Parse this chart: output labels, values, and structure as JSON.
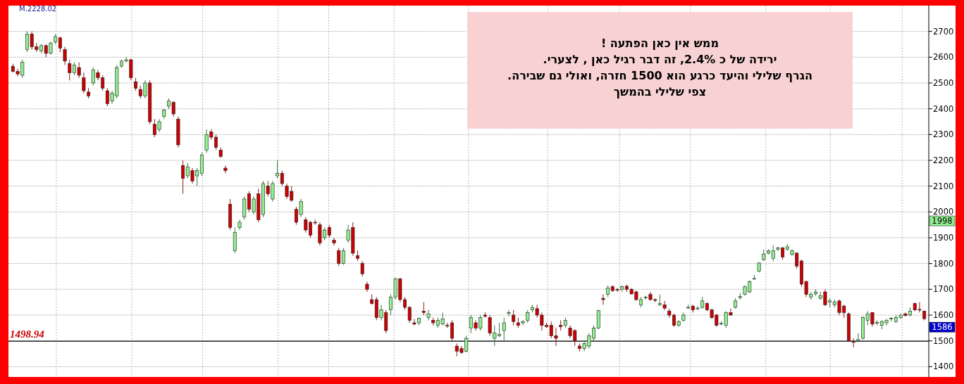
{
  "chart_data": {
    "type": "candlestick",
    "categories": [
      null,
      null,
      null,
      null,
      null,
      null,
      null,
      null,
      null,
      null,
      null,
      null,
      null,
      null,
      null,
      null,
      null,
      null,
      null,
      null,
      null,
      null,
      null,
      null,
      null,
      null,
      null,
      null,
      null,
      null,
      null,
      null,
      null,
      null,
      null,
      null,
      null,
      null,
      null,
      null,
      null,
      null,
      null,
      null,
      null,
      null,
      null,
      null,
      null,
      null,
      null,
      null,
      null,
      null,
      null,
      null,
      null,
      null,
      null,
      null,
      null,
      null,
      null,
      null,
      null,
      null,
      null,
      null,
      null,
      null,
      null,
      null,
      null,
      null,
      null,
      null,
      null,
      null,
      null,
      null,
      null,
      null,
      null,
      null,
      null,
      null,
      null,
      null,
      null,
      null,
      null,
      null,
      null,
      null,
      null,
      null,
      null,
      null,
      null,
      null,
      null,
      null,
      null,
      null,
      null,
      null,
      null,
      null,
      null,
      null,
      null,
      null,
      null,
      null,
      null,
      null,
      null,
      null,
      null,
      null,
      null,
      null,
      null,
      null,
      null,
      null,
      null,
      null,
      null,
      null,
      null,
      null,
      null,
      null,
      null,
      null,
      null,
      null,
      null,
      null,
      null,
      null,
      null,
      null,
      null,
      null,
      null,
      null,
      null,
      null,
      null,
      null,
      null,
      null,
      null,
      null,
      null,
      null,
      null,
      null,
      null,
      null,
      null,
      null,
      null,
      null,
      null,
      null,
      null,
      null,
      null,
      null,
      null,
      null,
      null,
      null,
      null,
      null,
      null,
      null,
      null,
      null,
      null,
      null,
      null,
      null,
      null,
      null,
      null,
      null,
      null,
      null,
      null,
      null
    ],
    "ohlc": [
      [
        2565,
        2575,
        2540,
        2545
      ],
      [
        2545,
        2555,
        2525,
        2535
      ],
      [
        2530,
        2590,
        2520,
        2580
      ],
      [
        2630,
        2700,
        2620,
        2690
      ],
      [
        2690,
        2700,
        2630,
        2640
      ],
      [
        2640,
        2655,
        2620,
        2630
      ],
      [
        2625,
        2650,
        2615,
        2645
      ],
      [
        2645,
        2650,
        2600,
        2615
      ],
      [
        2615,
        2660,
        2610,
        2655
      ],
      [
        2660,
        2690,
        2650,
        2680
      ],
      [
        2675,
        2680,
        2620,
        2635
      ],
      [
        2630,
        2640,
        2570,
        2585
      ],
      [
        2575,
        2590,
        2510,
        2540
      ],
      [
        2540,
        2580,
        2530,
        2570
      ],
      [
        2560,
        2580,
        2520,
        2530
      ],
      [
        2520,
        2540,
        2460,
        2470
      ],
      [
        2465,
        2480,
        2440,
        2450
      ],
      [
        2500,
        2560,
        2490,
        2550
      ],
      [
        2540,
        2550,
        2510,
        2520
      ],
      [
        2520,
        2530,
        2470,
        2480
      ],
      [
        2470,
        2480,
        2410,
        2420
      ],
      [
        2430,
        2470,
        2420,
        2460
      ],
      [
        2450,
        2570,
        2440,
        2560
      ],
      [
        2565,
        2590,
        2560,
        2585
      ],
      [
        2585,
        2600,
        2580,
        2590
      ],
      [
        2590,
        2595,
        2510,
        2520
      ],
      [
        2505,
        2520,
        2470,
        2480
      ],
      [
        2475,
        2490,
        2440,
        2450
      ],
      [
        2450,
        2510,
        2440,
        2500
      ],
      [
        2500,
        2510,
        2340,
        2350
      ],
      [
        2340,
        2360,
        2290,
        2300
      ],
      [
        2320,
        2360,
        2310,
        2350
      ],
      [
        2370,
        2400,
        2360,
        2395
      ],
      [
        2410,
        2440,
        2400,
        2430
      ],
      [
        2425,
        2430,
        2370,
        2380
      ],
      [
        2360,
        2370,
        2250,
        2260
      ],
      [
        2180,
        2200,
        2070,
        2130
      ],
      [
        2140,
        2190,
        2130,
        2175
      ],
      [
        2160,
        2170,
        2110,
        2120
      ],
      [
        2140,
        2170,
        2100,
        2160
      ],
      [
        2150,
        2230,
        2140,
        2220
      ],
      [
        2240,
        2320,
        2230,
        2300
      ],
      [
        2310,
        2320,
        2280,
        2290
      ],
      [
        2290,
        2300,
        2240,
        2250
      ],
      [
        2240,
        2250,
        2210,
        2215
      ],
      [
        2170,
        2180,
        2150,
        2160
      ],
      [
        2030,
        2050,
        1930,
        1940
      ],
      [
        1850,
        1940,
        1840,
        1920
      ],
      [
        1940,
        1970,
        1930,
        1960
      ],
      [
        1980,
        2060,
        1970,
        2050
      ],
      [
        2070,
        2080,
        2000,
        2010
      ],
      [
        2000,
        2060,
        1990,
        2050
      ],
      [
        2070,
        2090,
        1960,
        1970
      ],
      [
        1990,
        2120,
        1980,
        2110
      ],
      [
        2100,
        2120,
        2060,
        2070
      ],
      [
        2050,
        2120,
        2040,
        2110
      ],
      [
        2140,
        2200,
        2130,
        2150
      ],
      [
        2150,
        2160,
        2100,
        2110
      ],
      [
        2100,
        2110,
        2050,
        2060
      ],
      [
        2080,
        2100,
        2040,
        2045
      ],
      [
        2010,
        2020,
        1950,
        1960
      ],
      [
        1990,
        2050,
        1980,
        2040
      ],
      [
        1970,
        1980,
        1920,
        1930
      ],
      [
        1960,
        1965,
        1900,
        1910
      ],
      [
        1960,
        1970,
        1950,
        1958
      ],
      [
        1950,
        1960,
        1870,
        1880
      ],
      [
        1900,
        1940,
        1890,
        1930
      ],
      [
        1940,
        1950,
        1900,
        1910
      ],
      [
        1890,
        1900,
        1870,
        1880
      ],
      [
        1850,
        1860,
        1790,
        1800
      ],
      [
        1800,
        1860,
        1795,
        1850
      ],
      [
        1890,
        1950,
        1880,
        1930
      ],
      [
        1940,
        1960,
        1830,
        1840
      ],
      [
        1830,
        1850,
        1810,
        1820
      ],
      [
        1800,
        1810,
        1750,
        1760
      ],
      [
        1720,
        1730,
        1690,
        1700
      ],
      [
        1660,
        1680,
        1640,
        1645
      ],
      [
        1660,
        1670,
        1580,
        1590
      ],
      [
        1590,
        1640,
        1580,
        1620
      ],
      [
        1610,
        1620,
        1530,
        1540
      ],
      [
        1620,
        1680,
        1600,
        1670
      ],
      [
        1670,
        1745,
        1660,
        1740
      ],
      [
        1740,
        1745,
        1650,
        1660
      ],
      [
        1660,
        1670,
        1620,
        1630
      ],
      [
        1630,
        1635,
        1570,
        1580
      ],
      [
        1570,
        1585,
        1560,
        1565
      ],
      [
        1570,
        1590,
        1560,
        1588
      ],
      [
        1615,
        1650,
        1600,
        1610
      ],
      [
        1590,
        1620,
        1580,
        1605
      ],
      [
        1580,
        1590,
        1560,
        1570
      ],
      [
        1560,
        1590,
        1550,
        1580
      ],
      [
        1565,
        1610,
        1560,
        1585
      ],
      [
        1560,
        1570,
        1550,
        1558
      ],
      [
        1570,
        1580,
        1500,
        1510
      ],
      [
        1480,
        1490,
        1440,
        1460
      ],
      [
        1470,
        1480,
        1450,
        1455
      ],
      [
        1460,
        1520,
        1455,
        1510
      ],
      [
        1550,
        1600,
        1530,
        1590
      ],
      [
        1570,
        1580,
        1540,
        1550
      ],
      [
        1550,
        1600,
        1540,
        1590
      ],
      [
        1600,
        1610,
        1590,
        1595
      ],
      [
        1590,
        1600,
        1520,
        1530
      ],
      [
        1510,
        1560,
        1480,
        1530
      ],
      [
        1520,
        1570,
        1515,
        1525
      ],
      [
        1540,
        1590,
        1500,
        1570
      ],
      [
        1610,
        1620,
        1595,
        1610
      ],
      [
        1600,
        1620,
        1560,
        1575
      ],
      [
        1570,
        1590,
        1550,
        1560
      ],
      [
        1570,
        1580,
        1560,
        1575
      ],
      [
        1580,
        1620,
        1570,
        1610
      ],
      [
        1620,
        1640,
        1610,
        1630
      ],
      [
        1625,
        1640,
        1590,
        1600
      ],
      [
        1600,
        1610,
        1540,
        1560
      ],
      [
        1560,
        1570,
        1550,
        1555
      ],
      [
        1560,
        1575,
        1510,
        1520
      ],
      [
        1520,
        1550,
        1480,
        1510
      ],
      [
        1560,
        1580,
        1540,
        1555
      ],
      [
        1560,
        1590,
        1550,
        1580
      ],
      [
        1550,
        1560,
        1510,
        1520
      ],
      [
        1540,
        1545,
        1480,
        1500
      ],
      [
        1480,
        1490,
        1460,
        1470
      ],
      [
        1470,
        1500,
        1460,
        1490
      ],
      [
        1480,
        1530,
        1470,
        1520
      ],
      [
        1510,
        1560,
        1500,
        1550
      ],
      [
        1550,
        1620,
        1545,
        1618
      ],
      [
        1665,
        1680,
        1640,
        1660
      ],
      [
        1680,
        1715,
        1670,
        1705
      ],
      [
        1710,
        1715,
        1690,
        1695
      ],
      [
        1700,
        1705,
        1690,
        1697
      ],
      [
        1700,
        1715,
        1690,
        1710
      ],
      [
        1712,
        1718,
        1690,
        1700
      ],
      [
        1700,
        1705,
        1680,
        1682
      ],
      [
        1690,
        1695,
        1655,
        1660
      ],
      [
        1640,
        1670,
        1630,
        1660
      ],
      [
        1668,
        1675,
        1660,
        1670
      ],
      [
        1680,
        1690,
        1655,
        1660
      ],
      [
        1660,
        1665,
        1650,
        1657
      ],
      [
        1640,
        1680,
        1635,
        1645
      ],
      [
        1640,
        1655,
        1620,
        1627
      ],
      [
        1615,
        1625,
        1590,
        1600
      ],
      [
        1600,
        1605,
        1555,
        1560
      ],
      [
        1560,
        1580,
        1555,
        1575
      ],
      [
        1580,
        1610,
        1575,
        1600
      ],
      [
        1628,
        1640,
        1625,
        1630
      ],
      [
        1635,
        1640,
        1610,
        1620
      ],
      [
        1625,
        1635,
        1620,
        1627
      ],
      [
        1630,
        1670,
        1625,
        1655
      ],
      [
        1645,
        1650,
        1615,
        1620
      ],
      [
        1620,
        1625,
        1585,
        1590
      ],
      [
        1600,
        1605,
        1555,
        1560
      ],
      [
        1565,
        1575,
        1560,
        1568
      ],
      [
        1560,
        1615,
        1550,
        1610
      ],
      [
        1610,
        1625,
        1598,
        1600
      ],
      [
        1630,
        1665,
        1625,
        1655
      ],
      [
        1668,
        1685,
        1660,
        1672
      ],
      [
        1680,
        1715,
        1675,
        1710
      ],
      [
        1690,
        1735,
        1685,
        1730
      ],
      [
        1740,
        1755,
        1738,
        1742
      ],
      [
        1770,
        1805,
        1765,
        1802
      ],
      [
        1815,
        1855,
        1810,
        1837
      ],
      [
        1840,
        1855,
        1835,
        1850
      ],
      [
        1820,
        1870,
        1810,
        1850
      ],
      [
        1855,
        1865,
        1848,
        1860
      ],
      [
        1860,
        1865,
        1815,
        1825
      ],
      [
        1855,
        1875,
        1850,
        1865
      ],
      [
        1835,
        1855,
        1830,
        1850
      ],
      [
        1840,
        1845,
        1780,
        1790
      ],
      [
        1810,
        1815,
        1710,
        1720
      ],
      [
        1730,
        1735,
        1670,
        1680
      ],
      [
        1670,
        1690,
        1660,
        1680
      ],
      [
        1682,
        1700,
        1675,
        1690
      ],
      [
        1665,
        1690,
        1660,
        1675
      ],
      [
        1690,
        1700,
        1635,
        1640
      ],
      [
        1650,
        1665,
        1630,
        1655
      ],
      [
        1640,
        1660,
        1630,
        1650
      ],
      [
        1655,
        1660,
        1600,
        1610
      ],
      [
        1635,
        1640,
        1590,
        1610
      ],
      [
        1605,
        1610,
        1498,
        1500
      ],
      [
        1497,
        1510,
        1475,
        1495
      ],
      [
        1500,
        1530,
        1495,
        1505
      ],
      [
        1510,
        1595,
        1505,
        1590
      ],
      [
        1580,
        1615,
        1560,
        1605
      ],
      [
        1610,
        1612,
        1555,
        1565
      ],
      [
        1570,
        1580,
        1560,
        1572
      ],
      [
        1560,
        1580,
        1545,
        1575
      ],
      [
        1570,
        1585,
        1560,
        1580
      ],
      [
        1585,
        1592,
        1575,
        1588
      ],
      [
        1575,
        1600,
        1570,
        1590
      ],
      [
        1590,
        1605,
        1585,
        1600
      ],
      [
        1605,
        1610,
        1595,
        1598
      ],
      [
        1600,
        1630,
        1595,
        1615
      ],
      [
        1645,
        1648,
        1615,
        1620
      ],
      [
        1622,
        1650,
        1610,
        1620
      ],
      [
        1615,
        1618,
        1580,
        1586
      ]
    ],
    "ylim": [
      1360,
      2800
    ],
    "yticks": [
      1400,
      1500,
      1600,
      1700,
      1800,
      1900,
      2000,
      2100,
      2200,
      2300,
      2400,
      2500,
      2600,
      2700
    ],
    "grid": true,
    "ref_lines": [
      {
        "axis": "y",
        "value": 1498.94,
        "label": "1498.94",
        "color": "#000000"
      }
    ],
    "annotations": [
      "ממש אין כאן הפתעה !\nירידה  של כ 2.4%, זה דבר רגיל כאן , לצערי.\nהגרף שלילי  והיעד  כרגע הוא 1500 חזרה, ואולי גם שבירה.\nצפי שלילי בהמשך",
      "M.2228.02",
      "1998",
      "1586"
    ]
  }
}
